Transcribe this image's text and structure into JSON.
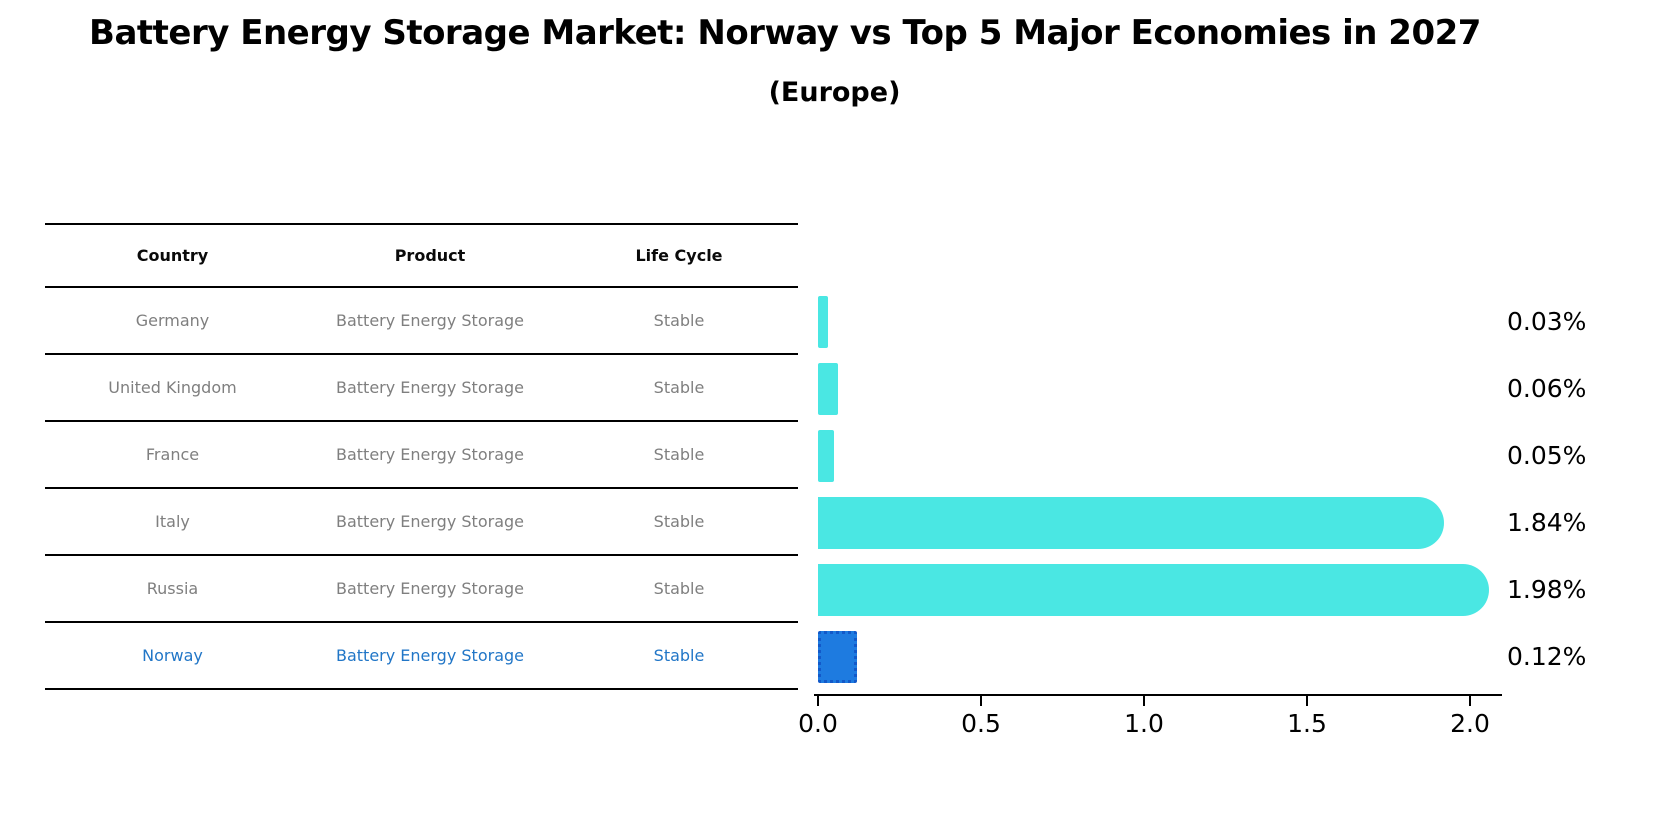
{
  "title": "Battery Energy Storage Market: Norway vs Top 5 Major Economies in 2027",
  "subtitle": "(Europe)",
  "table": {
    "headers": [
      "Country",
      "Product",
      "Life Cycle"
    ],
    "rows": [
      {
        "country": "Germany",
        "product": "Battery Energy Storage",
        "life_cycle": "Stable"
      },
      {
        "country": "United Kingdom",
        "product": "Battery Energy Storage",
        "life_cycle": "Stable"
      },
      {
        "country": "France",
        "product": "Battery Energy Storage",
        "life_cycle": "Stable"
      },
      {
        "country": "Italy",
        "product": "Battery Energy Storage",
        "life_cycle": "Stable"
      },
      {
        "country": "Russia",
        "product": "Battery Energy Storage",
        "life_cycle": "Stable"
      },
      {
        "country": "Norway",
        "product": "Battery Energy Storage",
        "life_cycle": "Stable"
      }
    ]
  },
  "chart_data": {
    "type": "bar",
    "orientation": "horizontal",
    "title": "Battery Energy Storage Market: Norway vs Top 5 Major Economies in 2027",
    "subtitle": "(Europe)",
    "categories": [
      "Germany",
      "United Kingdom",
      "France",
      "Italy",
      "Russia",
      "Norway"
    ],
    "values": [
      0.03,
      0.06,
      0.05,
      1.84,
      1.98,
      0.12
    ],
    "value_labels": [
      "0.03%",
      "0.06%",
      "0.05%",
      "1.84%",
      "1.98%",
      "0.12%"
    ],
    "x_ticks": [
      "0.0",
      "0.5",
      "1.0",
      "1.5",
      "2.0"
    ],
    "xlim": [
      0,
      2.0
    ],
    "highlight_index": 5,
    "grid": false,
    "legend": false
  },
  "colors": {
    "bar": "#4AE7E3",
    "highlight_bar": "#1E7BE0",
    "highlight_border": "#1259C9",
    "highlight_text": "#2176C7",
    "cell_text": "#7F7F7F",
    "axis": "#000000"
  }
}
